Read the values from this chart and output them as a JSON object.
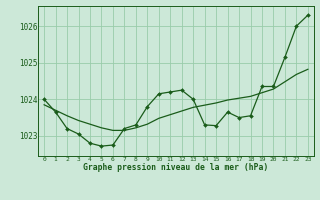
{
  "title": "Graphe pression niveau de la mer (hPa)",
  "bg_color": "#cce8d8",
  "plot_bg_color": "#cce8d8",
  "grid_color": "#99ccaa",
  "line_color": "#1a5c1a",
  "x_ticks": [
    0,
    1,
    2,
    3,
    4,
    5,
    6,
    7,
    8,
    9,
    10,
    11,
    12,
    13,
    14,
    15,
    16,
    17,
    18,
    19,
    20,
    21,
    22,
    23
  ],
  "ylim": [
    1022.45,
    1026.55
  ],
  "yticks": [
    1023,
    1024,
    1025,
    1026
  ],
  "series1_x": [
    0,
    1,
    2,
    3,
    4,
    5,
    6,
    7,
    8,
    9,
    10,
    11,
    12,
    13,
    14,
    15,
    16,
    17,
    18,
    19,
    20,
    21,
    22,
    23
  ],
  "series1_y": [
    1024.0,
    1023.65,
    1023.2,
    1023.05,
    1022.8,
    1022.72,
    1022.75,
    1023.2,
    1023.3,
    1023.8,
    1024.15,
    1024.2,
    1024.25,
    1024.0,
    1023.3,
    1023.28,
    1023.65,
    1023.5,
    1023.55,
    1024.35,
    1024.35,
    1025.15,
    1026.0,
    1026.3
  ],
  "series2_x": [
    0,
    1,
    2,
    3,
    4,
    5,
    6,
    7,
    8,
    9,
    10,
    11,
    12,
    13,
    14,
    15,
    16,
    17,
    18,
    19,
    20,
    21,
    22,
    23
  ],
  "series2_y": [
    1023.85,
    1023.7,
    1023.55,
    1023.42,
    1023.32,
    1023.22,
    1023.15,
    1023.15,
    1023.22,
    1023.32,
    1023.48,
    1023.58,
    1023.68,
    1023.78,
    1023.84,
    1023.9,
    1023.98,
    1024.03,
    1024.08,
    1024.18,
    1024.28,
    1024.48,
    1024.68,
    1024.82
  ]
}
